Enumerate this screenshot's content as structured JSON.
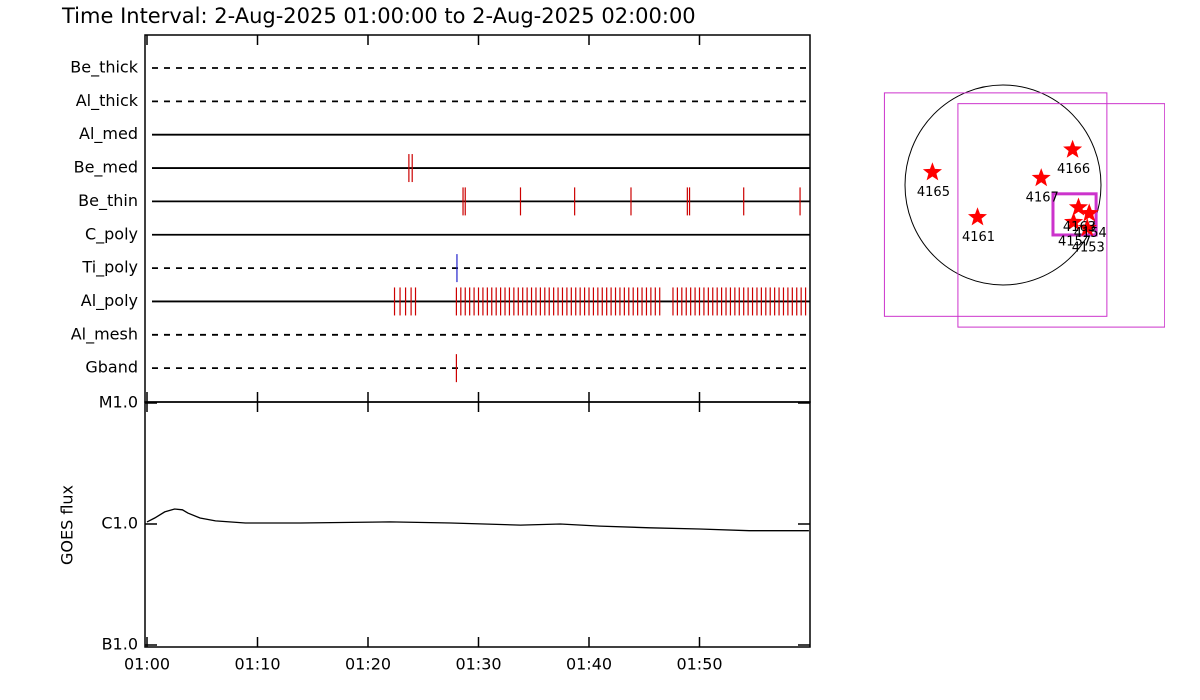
{
  "chart_data": [
    {
      "type": "event",
      "title": "Time Interval:  2-Aug-2025 01:00:00 to  2-Aug-2025 02:00:00",
      "xlim": [
        0,
        60
      ],
      "rows": [
        {
          "name": "Be_thick",
          "dashed": true,
          "color": "#cc0000",
          "times": []
        },
        {
          "name": "Al_thick",
          "dashed": true,
          "color": "#cc0000",
          "times": []
        },
        {
          "name": "Al_med",
          "dashed": false,
          "color": "#cc0000",
          "times": []
        },
        {
          "name": "Be_med",
          "dashed": false,
          "color": "#cc0000",
          "times": [
            23.7,
            24.0
          ]
        },
        {
          "name": "Be_thin",
          "dashed": false,
          "color": "#cc0000",
          "times": [
            28.6,
            28.8,
            33.8,
            38.7,
            43.8,
            48.9,
            49.1,
            54.0,
            59.1
          ]
        },
        {
          "name": "C_poly",
          "dashed": false,
          "color": "#cc0000",
          "times": []
        },
        {
          "name": "Ti_poly",
          "dashed": true,
          "color": "#2222cc",
          "times": [
            28.05
          ]
        },
        {
          "name": "Al_poly",
          "dashed": false,
          "color": "#cc0000",
          "times": [
            22.4,
            22.9,
            23.4,
            23.9,
            24.3,
            28.0,
            28.4,
            28.8,
            29.2,
            29.6,
            30.0,
            30.4,
            30.8,
            31.2,
            31.6,
            32.0,
            32.4,
            32.8,
            33.2,
            33.6,
            34.0,
            34.4,
            34.8,
            35.2,
            35.6,
            36.0,
            36.4,
            36.8,
            37.2,
            37.6,
            38.0,
            38.4,
            38.8,
            39.2,
            39.6,
            40.0,
            40.4,
            40.8,
            41.2,
            41.6,
            42.0,
            42.4,
            42.8,
            43.2,
            43.6,
            44.0,
            44.4,
            44.8,
            45.2,
            45.6,
            46.0,
            46.4,
            47.6,
            48.0,
            48.4,
            48.8,
            49.2,
            49.6,
            50.0,
            50.4,
            50.8,
            51.2,
            51.6,
            52.0,
            52.4,
            52.8,
            53.2,
            53.6,
            54.0,
            54.4,
            54.8,
            55.2,
            55.6,
            56.0,
            56.4,
            56.8,
            57.2,
            57.6,
            58.0,
            58.4,
            58.8,
            59.2,
            59.6
          ]
        },
        {
          "name": "Al_mesh",
          "dashed": true,
          "color": "#cc0000",
          "times": []
        },
        {
          "name": "Gband",
          "dashed": true,
          "color": "#cc0000",
          "times": [
            28.0
          ]
        }
      ]
    },
    {
      "type": "line",
      "ylabel": "GOES flux",
      "log_y": true,
      "color": "#000000",
      "x": [
        0,
        0.7,
        1.6,
        2.5,
        3.2,
        3.7,
        4.8,
        6.2,
        8.9,
        13.9,
        22.0,
        27.5,
        33.8,
        37.4,
        41.0,
        45.5,
        50.0,
        54.5,
        59.9
      ],
      "values": [
        1.04e-06,
        1.12e-06,
        1.26e-06,
        1.33e-06,
        1.31e-06,
        1.23e-06,
        1.12e-06,
        1.06e-06,
        1.02e-06,
        1.02e-06,
        1.04e-06,
        1.02e-06,
        9.8e-07,
        1e-06,
        9.6e-07,
        9.3e-07,
        9.1e-07,
        8.8e-07,
        8.8e-07
      ],
      "xlim": [
        0,
        60
      ],
      "xticks": [
        {
          "value": 0,
          "label": "01:00"
        },
        {
          "value": 10,
          "label": "01:10"
        },
        {
          "value": 20,
          "label": "01:20"
        },
        {
          "value": 30,
          "label": "01:30"
        },
        {
          "value": 40,
          "label": "01:40"
        },
        {
          "value": 50,
          "label": "01:50"
        }
      ],
      "ylim": [
        1e-07,
        1e-05
      ],
      "yticks": [
        {
          "value": 1e-07,
          "label": "B1.0"
        },
        {
          "value": 1e-06,
          "label": "C1.0"
        },
        {
          "value": 1e-05,
          "label": "M1.0"
        }
      ]
    },
    {
      "type": "map",
      "sun_color": "#000000",
      "boxes": [
        {
          "x": [
            -1.21,
            1.06
          ],
          "y": [
            -1.34,
            0.94
          ],
          "color": "#cc33cc",
          "line_width": 1
        },
        {
          "x": [
            -0.46,
            1.65
          ],
          "y": [
            -1.45,
            0.83
          ],
          "color": "#cc33cc",
          "line_width": 1
        },
        {
          "x": [
            0.51,
            0.95
          ],
          "y": [
            -0.51,
            -0.09
          ],
          "color": "#cc33cc",
          "line_width": 3
        }
      ],
      "points": {
        "color": "#ff0000",
        "labels": [
          "4165",
          "4166",
          "4167",
          "4161",
          "4163",
          "4157",
          "4154",
          "4153"
        ],
        "x": [
          -0.72,
          0.71,
          0.39,
          -0.26,
          0.77,
          0.72,
          0.88,
          0.86
        ],
        "y": [
          0.13,
          0.36,
          0.07,
          -0.33,
          -0.23,
          -0.38,
          -0.29,
          -0.44
        ]
      }
    }
  ]
}
